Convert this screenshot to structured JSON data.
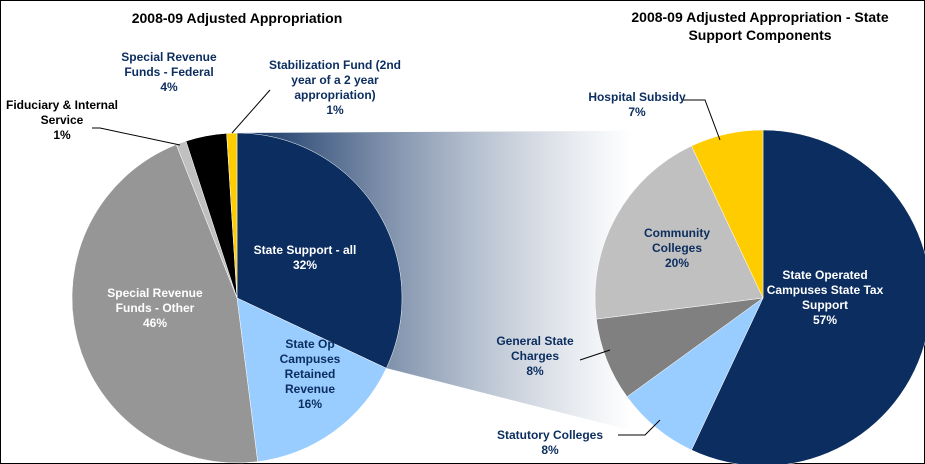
{
  "chart_data": [
    {
      "type": "pie",
      "title": "2008-09 Adjusted Appropriation",
      "categories": [
        "State Support - all",
        "State Op Campuses Retained Revenue",
        "Special Revenue Funds - Other",
        "Fiduciary & Internal Service",
        "Special Revenue Funds - Federal",
        "Stabilization Fund (2nd year of a 2 year appropriation)"
      ],
      "values": [
        32,
        16,
        46,
        1,
        4,
        1
      ],
      "value_labels": [
        "32%",
        "16%",
        "46%",
        "1%",
        "4%",
        "1%"
      ],
      "colors": [
        "#0b2d5f",
        "#99ccff",
        "#969696",
        "#c0c0c0",
        "#000000",
        "#ffcc00"
      ]
    },
    {
      "type": "pie",
      "title": "2008-09 Adjusted Appropriation - State Support Components",
      "categories": [
        "State Operated Campuses State Tax Support",
        "Statutory Colleges",
        "General State Charges",
        "Community Colleges",
        "Hospital Subsidy"
      ],
      "values": [
        57,
        8,
        8,
        20,
        7
      ],
      "value_labels": [
        "57%",
        "8%",
        "8%",
        "20%",
        "7%"
      ],
      "colors": [
        "#0b2d5f",
        "#99ccff",
        "#808080",
        "#c0c0c0",
        "#ffcc00"
      ]
    }
  ]
}
